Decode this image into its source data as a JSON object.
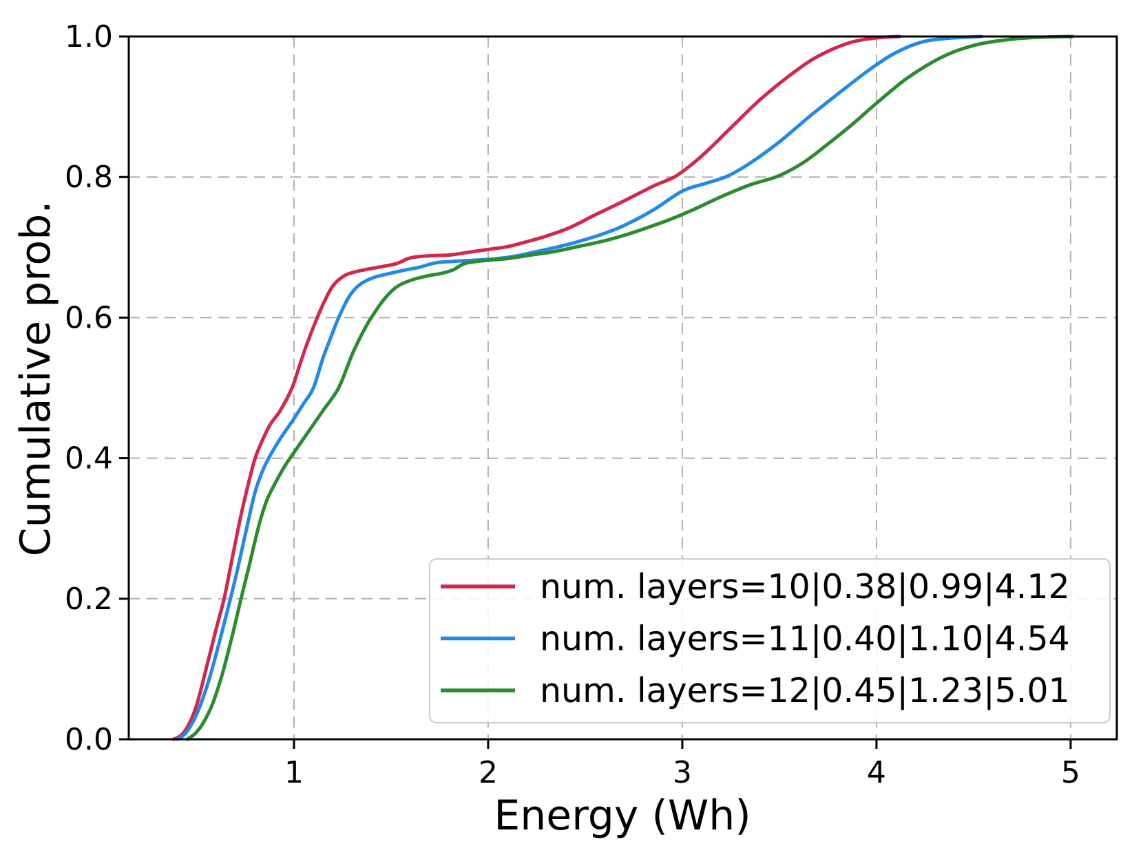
{
  "figure": {
    "background": "#ffffff",
    "frame_color": "#000000",
    "grid_color": "#b0b0b0",
    "text_color": "#000000",
    "legend_border_color": "#cccccc",
    "legend_fill": "rgba(255,255,255,0.85)"
  },
  "chart_data": {
    "type": "line",
    "variant": "empirical-cdf",
    "title": "",
    "xlabel": "Energy (Wh)",
    "ylabel": "Cumulative prob.",
    "xlim": [
      0.149,
      5.238
    ],
    "ylim": [
      0.0,
      1.0
    ],
    "grid": "dashed",
    "legend_position": "lower-right",
    "x_ticks": {
      "values": [
        1,
        2,
        3,
        4,
        5
      ],
      "labels": [
        "1",
        "2",
        "3",
        "4",
        "5"
      ]
    },
    "y_ticks": {
      "values": [
        0.0,
        0.2,
        0.4,
        0.6,
        0.8,
        1.0
      ],
      "labels": [
        "0.0",
        "0.2",
        "0.4",
        "0.6",
        "0.8",
        "1.0"
      ]
    },
    "series": [
      {
        "name": "num. layers=10|0.38|0.99|4.12",
        "color": "#d4264b",
        "stats": {
          "num_layers": 10,
          "min": 0.38,
          "median": 0.99,
          "max": 4.12
        },
        "points": [
          [
            0.38,
            0.0
          ],
          [
            0.42,
            0.006
          ],
          [
            0.46,
            0.022
          ],
          [
            0.5,
            0.05
          ],
          [
            0.55,
            0.103
          ],
          [
            0.6,
            0.158
          ],
          [
            0.64,
            0.2
          ],
          [
            0.68,
            0.255
          ],
          [
            0.72,
            0.31
          ],
          [
            0.76,
            0.358
          ],
          [
            0.8,
            0.4
          ],
          [
            0.84,
            0.427
          ],
          [
            0.88,
            0.449
          ],
          [
            0.93,
            0.468
          ],
          [
            0.99,
            0.5
          ],
          [
            1.03,
            0.533
          ],
          [
            1.07,
            0.565
          ],
          [
            1.12,
            0.6
          ],
          [
            1.16,
            0.625
          ],
          [
            1.2,
            0.645
          ],
          [
            1.25,
            0.658
          ],
          [
            1.3,
            0.664
          ],
          [
            1.38,
            0.669
          ],
          [
            1.46,
            0.673
          ],
          [
            1.53,
            0.677
          ],
          [
            1.6,
            0.685
          ],
          [
            1.7,
            0.688
          ],
          [
            1.8,
            0.689
          ],
          [
            1.9,
            0.693
          ],
          [
            2.0,
            0.697
          ],
          [
            2.1,
            0.701
          ],
          [
            2.2,
            0.708
          ],
          [
            2.3,
            0.716
          ],
          [
            2.42,
            0.728
          ],
          [
            2.55,
            0.746
          ],
          [
            2.7,
            0.766
          ],
          [
            2.85,
            0.787
          ],
          [
            2.97,
            0.802
          ],
          [
            3.1,
            0.83
          ],
          [
            3.25,
            0.87
          ],
          [
            3.4,
            0.91
          ],
          [
            3.56,
            0.946
          ],
          [
            3.7,
            0.972
          ],
          [
            3.86,
            0.991
          ],
          [
            4.0,
            0.998
          ],
          [
            4.12,
            1.0
          ]
        ]
      },
      {
        "name": "num. layers=11|0.40|1.10|4.54",
        "color": "#2289e8",
        "stats": {
          "num_layers": 11,
          "min": 0.4,
          "median": 1.1,
          "max": 4.54
        },
        "points": [
          [
            0.4,
            0.0
          ],
          [
            0.44,
            0.008
          ],
          [
            0.48,
            0.025
          ],
          [
            0.52,
            0.05
          ],
          [
            0.57,
            0.092
          ],
          [
            0.62,
            0.143
          ],
          [
            0.67,
            0.197
          ],
          [
            0.71,
            0.243
          ],
          [
            0.76,
            0.305
          ],
          [
            0.8,
            0.352
          ],
          [
            0.84,
            0.383
          ],
          [
            0.88,
            0.405
          ],
          [
            0.93,
            0.428
          ],
          [
            0.99,
            0.452
          ],
          [
            1.05,
            0.478
          ],
          [
            1.1,
            0.5
          ],
          [
            1.15,
            0.543
          ],
          [
            1.19,
            0.572
          ],
          [
            1.23,
            0.6
          ],
          [
            1.28,
            0.628
          ],
          [
            1.33,
            0.645
          ],
          [
            1.4,
            0.656
          ],
          [
            1.48,
            0.662
          ],
          [
            1.56,
            0.667
          ],
          [
            1.65,
            0.672
          ],
          [
            1.73,
            0.678
          ],
          [
            1.82,
            0.68
          ],
          [
            1.95,
            0.682
          ],
          [
            2.05,
            0.684
          ],
          [
            2.15,
            0.688
          ],
          [
            2.25,
            0.694
          ],
          [
            2.35,
            0.7
          ],
          [
            2.45,
            0.707
          ],
          [
            2.58,
            0.718
          ],
          [
            2.7,
            0.731
          ],
          [
            2.85,
            0.753
          ],
          [
            3.0,
            0.78
          ],
          [
            3.12,
            0.791
          ],
          [
            3.23,
            0.801
          ],
          [
            3.35,
            0.82
          ],
          [
            3.5,
            0.85
          ],
          [
            3.65,
            0.885
          ],
          [
            3.8,
            0.918
          ],
          [
            3.95,
            0.95
          ],
          [
            4.08,
            0.974
          ],
          [
            4.22,
            0.991
          ],
          [
            4.35,
            0.997
          ],
          [
            4.54,
            1.0
          ]
        ]
      },
      {
        "name": "num. layers=12|0.45|1.23|5.01",
        "color": "#2b8c2e",
        "stats": {
          "num_layers": 12,
          "min": 0.45,
          "median": 1.23,
          "max": 5.01
        },
        "points": [
          [
            0.45,
            0.0
          ],
          [
            0.49,
            0.008
          ],
          [
            0.53,
            0.022
          ],
          [
            0.58,
            0.05
          ],
          [
            0.63,
            0.092
          ],
          [
            0.68,
            0.145
          ],
          [
            0.73,
            0.203
          ],
          [
            0.77,
            0.248
          ],
          [
            0.82,
            0.305
          ],
          [
            0.86,
            0.34
          ],
          [
            0.91,
            0.368
          ],
          [
            0.96,
            0.392
          ],
          [
            1.02,
            0.416
          ],
          [
            1.08,
            0.44
          ],
          [
            1.15,
            0.468
          ],
          [
            1.23,
            0.5
          ],
          [
            1.3,
            0.548
          ],
          [
            1.36,
            0.582
          ],
          [
            1.41,
            0.605
          ],
          [
            1.47,
            0.628
          ],
          [
            1.53,
            0.644
          ],
          [
            1.6,
            0.653
          ],
          [
            1.68,
            0.659
          ],
          [
            1.76,
            0.663
          ],
          [
            1.82,
            0.668
          ],
          [
            1.88,
            0.677
          ],
          [
            1.98,
            0.681
          ],
          [
            2.1,
            0.684
          ],
          [
            2.22,
            0.689
          ],
          [
            2.34,
            0.694
          ],
          [
            2.46,
            0.701
          ],
          [
            2.58,
            0.708
          ],
          [
            2.7,
            0.717
          ],
          [
            2.82,
            0.728
          ],
          [
            2.94,
            0.74
          ],
          [
            3.06,
            0.754
          ],
          [
            3.2,
            0.772
          ],
          [
            3.35,
            0.789
          ],
          [
            3.49,
            0.801
          ],
          [
            3.62,
            0.82
          ],
          [
            3.75,
            0.847
          ],
          [
            3.88,
            0.876
          ],
          [
            4.0,
            0.905
          ],
          [
            4.16,
            0.941
          ],
          [
            4.34,
            0.971
          ],
          [
            4.51,
            0.988
          ],
          [
            4.69,
            0.996
          ],
          [
            4.85,
            0.999
          ],
          [
            5.01,
            1.0
          ]
        ]
      }
    ]
  }
}
